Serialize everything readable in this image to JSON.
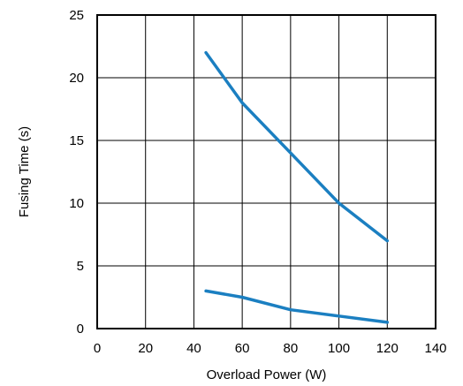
{
  "chart_data": {
    "type": "line",
    "title": "",
    "xlabel": "Overload Power (W)",
    "ylabel": "Fusing Time (s)",
    "xlim": [
      0,
      140
    ],
    "ylim": [
      0,
      25
    ],
    "xticks": [
      0,
      20,
      40,
      60,
      80,
      100,
      120,
      140
    ],
    "yticks": [
      0,
      5,
      10,
      15,
      20,
      25
    ],
    "grid": true,
    "legend": "none",
    "series": [
      {
        "x": [
          45,
          60,
          80,
          100,
          120
        ],
        "y": [
          22,
          18,
          14,
          10,
          7
        ],
        "color": "#1b7fc1"
      },
      {
        "x": [
          45,
          60,
          80,
          100,
          120
        ],
        "y": [
          3,
          2.5,
          1.5,
          1,
          0.5
        ],
        "color": "#1b7fc1"
      }
    ]
  }
}
